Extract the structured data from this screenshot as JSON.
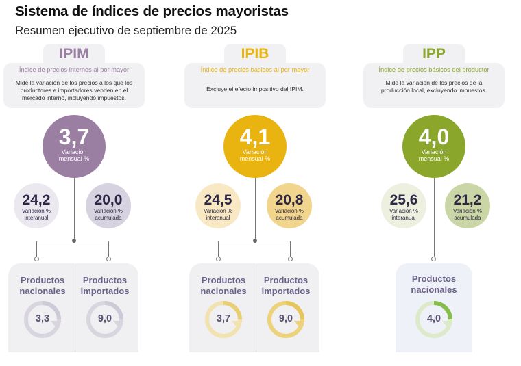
{
  "header": {
    "title": "Sistema de índices de precios mayoristas",
    "subtitle": "Resumen ejecutivo de septiembre de 2025"
  },
  "panels": [
    {
      "code": "IPIM",
      "name": "Índice de precios internos al por mayor",
      "description": "Mide la variación de los precios a los que los productores e importadores venden en el mercado interno, incluyendo impuestos.",
      "color": "#9b7fa3",
      "monthly": {
        "value": "3,7",
        "label": "Variación mensual %"
      },
      "yearly": {
        "value": "24,2",
        "label_1": "Variación %",
        "label_2": "interanual",
        "color": "#ebe8f0"
      },
      "accumulated": {
        "value": "20,0",
        "label_1": "Variación %",
        "label_2": "acumulada",
        "color": "#d7d2df"
      },
      "products": [
        {
          "label_1": "Productos",
          "label_2": "nacionales",
          "value": "3,3",
          "ring_color": "#d9d5df",
          "ring_fill": "#cfcad7"
        },
        {
          "label_1": "Productos",
          "label_2": "importados",
          "value": "9,0",
          "ring_color": "#d9d5df",
          "ring_fill": "#cfcad7"
        }
      ]
    },
    {
      "code": "IPIB",
      "name": "Índice de precios básicos al por mayor",
      "description": "Excluye el efecto impositivo del IPIM.",
      "color": "#e9b310",
      "monthly": {
        "value": "4,1",
        "label": "Variación mensual %"
      },
      "yearly": {
        "value": "24,5",
        "label_1": "Variación %",
        "label_2": "interanual",
        "color": "#f8e9c4"
      },
      "accumulated": {
        "value": "20,8",
        "label_1": "Variación %",
        "label_2": "acumulada",
        "color": "#f1d58c"
      },
      "products": [
        {
          "label_1": "Productos",
          "label_2": "nacionales",
          "value": "3,7",
          "ring_color": "#f1e2b0",
          "ring_fill": "#e9cf74"
        },
        {
          "label_1": "Productos",
          "label_2": "importados",
          "value": "9,0",
          "ring_color": "#ecd27a",
          "ring_fill": "#e6c65a"
        }
      ]
    },
    {
      "code": "IPP",
      "name": "Índice de precios básicos del productor",
      "description": "Mide la variación de los precios de la producción local, excluyendo impuestos.",
      "color": "#8aa72c",
      "monthly": {
        "value": "4,0",
        "label": "Variación mensual %"
      },
      "yearly": {
        "value": "25,6",
        "label_1": "Variación %",
        "label_2": "interanual",
        "color": "#edf0df"
      },
      "accumulated": {
        "value": "21,2",
        "label_1": "Variación %",
        "label_2": "acumulada",
        "color": "#cbd6a6"
      },
      "products": [
        {
          "label_1": "Productos",
          "label_2": "nacionales",
          "value": "4,0",
          "ring_color": "#dceac9",
          "ring_fill": "#86bd4b"
        }
      ]
    }
  ]
}
